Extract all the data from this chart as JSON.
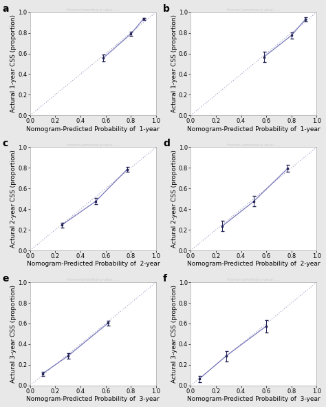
{
  "panels": [
    {
      "label": "a",
      "xlabel": "Nomogram-Predicted Probability of  1-year",
      "ylabel": "Actural 1-year CSS (proportion)",
      "x": [
        0.58,
        0.8,
        0.9
      ],
      "y": [
        0.555,
        0.79,
        0.935
      ],
      "yerr": [
        0.035,
        0.02,
        0.012
      ],
      "xlim": [
        0.0,
        1.0
      ],
      "ylim": [
        0.0,
        1.0
      ],
      "xticks": [
        0.0,
        0.2,
        0.4,
        0.6,
        0.8,
        1.0
      ],
      "yticks": [
        0.0,
        0.2,
        0.4,
        0.6,
        0.8,
        1.0
      ]
    },
    {
      "label": "b",
      "xlabel": "Nomogram-Predicted Probability of  1-year",
      "ylabel": "Actural 1-year CSS (proportion)",
      "x": [
        0.58,
        0.8,
        0.91
      ],
      "y": [
        0.565,
        0.775,
        0.93
      ],
      "yerr": [
        0.05,
        0.03,
        0.018
      ],
      "xlim": [
        0.0,
        1.0
      ],
      "ylim": [
        0.0,
        1.0
      ],
      "xticks": [
        0.0,
        0.2,
        0.4,
        0.6,
        0.8,
        1.0
      ],
      "yticks": [
        0.0,
        0.2,
        0.4,
        0.6,
        0.8,
        1.0
      ]
    },
    {
      "label": "c",
      "xlabel": "Nomogram-Predicted Probability of  2-year",
      "ylabel": "Actural 2-year CSS (proportion)",
      "x": [
        0.25,
        0.52,
        0.77
      ],
      "y": [
        0.245,
        0.475,
        0.785
      ],
      "yerr": [
        0.025,
        0.03,
        0.025
      ],
      "xlim": [
        0.0,
        1.0
      ],
      "ylim": [
        0.0,
        1.0
      ],
      "xticks": [
        0.0,
        0.2,
        0.4,
        0.6,
        0.8,
        1.0
      ],
      "yticks": [
        0.0,
        0.2,
        0.4,
        0.6,
        0.8,
        1.0
      ]
    },
    {
      "label": "d",
      "xlabel": "Nomogram-Predicted Probability of  2-year",
      "ylabel": "Actural 2-year CSS (proportion)",
      "x": [
        0.25,
        0.5,
        0.77
      ],
      "y": [
        0.235,
        0.475,
        0.795
      ],
      "yerr": [
        0.05,
        0.05,
        0.035
      ],
      "xlim": [
        0.0,
        1.0
      ],
      "ylim": [
        0.0,
        1.0
      ],
      "xticks": [
        0.0,
        0.2,
        0.4,
        0.6,
        0.8,
        1.0
      ],
      "yticks": [
        0.0,
        0.2,
        0.4,
        0.6,
        0.8,
        1.0
      ]
    },
    {
      "label": "e",
      "xlabel": "Nomogram-Predicted Probability of  3-year",
      "ylabel": "Actural 3-year CSS (proportion)",
      "x": [
        0.1,
        0.3,
        0.62
      ],
      "y": [
        0.115,
        0.285,
        0.605
      ],
      "yerr": [
        0.02,
        0.025,
        0.025
      ],
      "xlim": [
        0.0,
        1.0
      ],
      "ylim": [
        0.0,
        1.0
      ],
      "xticks": [
        0.0,
        0.2,
        0.4,
        0.6,
        0.8,
        1.0
      ],
      "yticks": [
        0.0,
        0.2,
        0.4,
        0.6,
        0.8,
        1.0
      ]
    },
    {
      "label": "f",
      "xlabel": "Nomogram-Predicted Probability of  3-year",
      "ylabel": "Actural 3-year CSS (proportion)",
      "x": [
        0.07,
        0.28,
        0.6
      ],
      "y": [
        0.065,
        0.285,
        0.575
      ],
      "yerr": [
        0.03,
        0.05,
        0.06
      ],
      "xlim": [
        0.0,
        1.0
      ],
      "ylim": [
        0.0,
        1.0
      ],
      "xticks": [
        0.0,
        0.2,
        0.4,
        0.6,
        0.8,
        1.0
      ],
      "yticks": [
        0.0,
        0.2,
        0.4,
        0.6,
        0.8,
        1.0
      ]
    }
  ],
  "line_color": "#7777bb",
  "dot_color": "#222255",
  "diag_color": "#aaaacc",
  "bg_color": "#e8e8e8",
  "plot_bg": "#ffffff",
  "label_fontsize": 6.5,
  "tick_fontsize": 6,
  "panel_label_fontsize": 10
}
